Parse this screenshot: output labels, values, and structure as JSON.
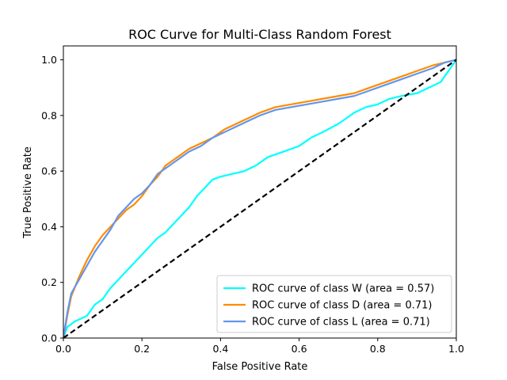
{
  "chart_data": {
    "type": "line",
    "title": "ROC Curve for Multi-Class Random Forest",
    "xlabel": "False Positive Rate",
    "ylabel": "True Positive Rate",
    "xlim": [
      0.0,
      1.0
    ],
    "ylim": [
      0.0,
      1.05
    ],
    "x_ticks": [
      0.0,
      0.2,
      0.4,
      0.6,
      0.8,
      1.0
    ],
    "x_tick_labels": [
      "0.0",
      "0.2",
      "0.4",
      "0.6",
      "0.8",
      "1.0"
    ],
    "y_ticks": [
      0.0,
      0.2,
      0.4,
      0.6,
      0.8,
      1.0
    ],
    "y_tick_labels": [
      "0.0",
      "0.2",
      "0.4",
      "0.6",
      "0.8",
      "1.0"
    ],
    "grid": false,
    "legend_position": "lower-right",
    "series": [
      {
        "name": "ROC curve of class W (area = 0.57)",
        "color": "#00ffff",
        "x": [
          0.0,
          0.01,
          0.03,
          0.06,
          0.08,
          0.1,
          0.12,
          0.14,
          0.16,
          0.18,
          0.2,
          0.22,
          0.24,
          0.26,
          0.28,
          0.3,
          0.32,
          0.34,
          0.36,
          0.38,
          0.4,
          0.43,
          0.46,
          0.49,
          0.52,
          0.56,
          0.6,
          0.63,
          0.66,
          0.7,
          0.72,
          0.74,
          0.77,
          0.8,
          0.83,
          0.86,
          0.9,
          0.93,
          0.96,
          0.98,
          1.0
        ],
        "y": [
          0.0,
          0.04,
          0.06,
          0.08,
          0.12,
          0.14,
          0.18,
          0.21,
          0.24,
          0.27,
          0.3,
          0.33,
          0.36,
          0.38,
          0.41,
          0.44,
          0.47,
          0.51,
          0.54,
          0.57,
          0.58,
          0.59,
          0.6,
          0.62,
          0.65,
          0.67,
          0.69,
          0.72,
          0.74,
          0.77,
          0.79,
          0.81,
          0.83,
          0.84,
          0.86,
          0.87,
          0.88,
          0.9,
          0.92,
          0.96,
          1.0
        ]
      },
      {
        "name": "ROC curve of class D (area = 0.71)",
        "color": "#ff8c00",
        "x": [
          0.0,
          0.01,
          0.02,
          0.04,
          0.06,
          0.08,
          0.1,
          0.12,
          0.14,
          0.16,
          0.18,
          0.2,
          0.22,
          0.24,
          0.26,
          0.28,
          0.3,
          0.32,
          0.35,
          0.38,
          0.41,
          0.44,
          0.47,
          0.5,
          0.54,
          0.58,
          0.62,
          0.66,
          0.7,
          0.74,
          0.78,
          0.82,
          0.86,
          0.9,
          0.94,
          0.97,
          1.0
        ],
        "y": [
          0.0,
          0.08,
          0.15,
          0.22,
          0.28,
          0.33,
          0.37,
          0.4,
          0.43,
          0.46,
          0.48,
          0.51,
          0.55,
          0.58,
          0.62,
          0.64,
          0.66,
          0.68,
          0.7,
          0.72,
          0.75,
          0.77,
          0.79,
          0.81,
          0.83,
          0.84,
          0.85,
          0.86,
          0.87,
          0.88,
          0.9,
          0.92,
          0.94,
          0.96,
          0.98,
          0.99,
          1.0
        ]
      },
      {
        "name": "ROC curve of class L (area = 0.71)",
        "color": "#6495ed",
        "x": [
          0.0,
          0.01,
          0.02,
          0.04,
          0.06,
          0.08,
          0.1,
          0.12,
          0.14,
          0.16,
          0.18,
          0.2,
          0.22,
          0.24,
          0.26,
          0.28,
          0.3,
          0.32,
          0.35,
          0.38,
          0.41,
          0.44,
          0.47,
          0.5,
          0.54,
          0.58,
          0.62,
          0.66,
          0.7,
          0.74,
          0.78,
          0.82,
          0.86,
          0.9,
          0.94,
          0.97,
          1.0
        ],
        "y": [
          0.0,
          0.09,
          0.16,
          0.21,
          0.26,
          0.31,
          0.35,
          0.39,
          0.44,
          0.47,
          0.5,
          0.52,
          0.55,
          0.59,
          0.61,
          0.63,
          0.65,
          0.67,
          0.69,
          0.72,
          0.74,
          0.76,
          0.78,
          0.8,
          0.82,
          0.83,
          0.84,
          0.85,
          0.86,
          0.87,
          0.89,
          0.91,
          0.93,
          0.95,
          0.97,
          0.99,
          1.0
        ]
      }
    ],
    "reference_line": {
      "x": [
        0.0,
        1.0
      ],
      "y": [
        0.0,
        1.0
      ],
      "color": "#000000",
      "style": "dashed"
    }
  }
}
